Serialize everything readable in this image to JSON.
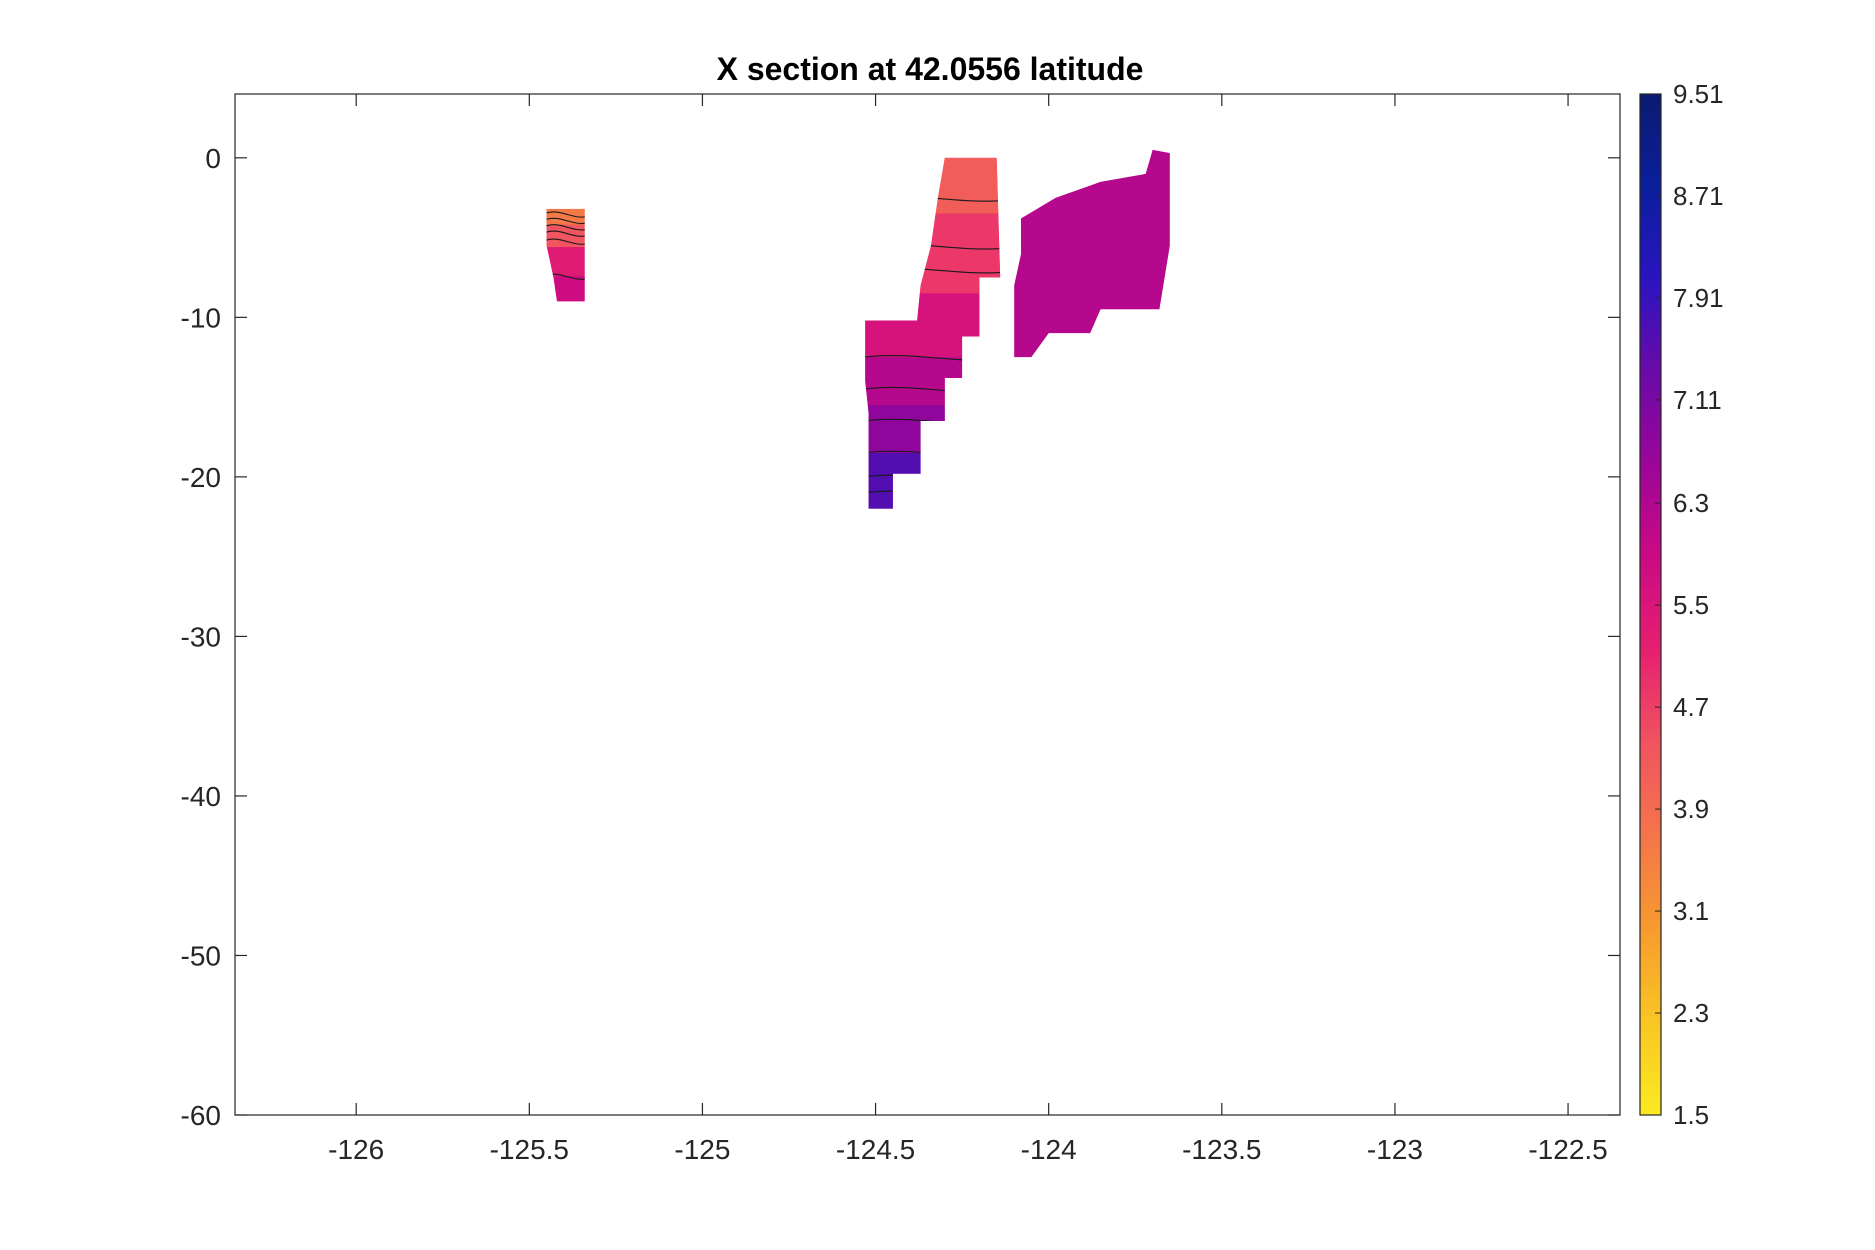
{
  "chart_data": {
    "type": "heatmap",
    "title": "X section at 42.0556 latitude",
    "xlabel": "",
    "ylabel": "",
    "xlim": [
      -126.35,
      -122.35
    ],
    "ylim": [
      -60,
      4
    ],
    "x_ticks": [
      -126,
      -125.5,
      -125,
      -124.5,
      -124,
      -123.5,
      -123,
      -122.5
    ],
    "x_tick_labels": [
      "-126",
      "-125.5",
      "-125",
      "-124.5",
      "-124",
      "-123.5",
      "-123",
      "-122.5"
    ],
    "y_ticks": [
      0,
      -10,
      -20,
      -30,
      -40,
      -50,
      -60
    ],
    "y_tick_labels": [
      "0",
      "-10",
      "-20",
      "-30",
      "-40",
      "-50",
      "-60"
    ],
    "colorbar": {
      "min": 1.5,
      "max": 9.51,
      "ticks": [
        9.51,
        8.71,
        7.91,
        7.11,
        6.3,
        5.5,
        4.7,
        3.9,
        3.1,
        2.3,
        1.5
      ],
      "tick_labels": [
        "9.51",
        "8.71",
        "7.91",
        "7.11",
        "6.3",
        "5.5",
        "4.7",
        "3.9",
        "3.1",
        "2.3",
        "1.5"
      ],
      "colormap_stops": [
        "#fbea22",
        "#f9c623",
        "#f79b2e",
        "#f4754a",
        "#f05460",
        "#e6206f",
        "#cc0a84",
        "#9c0598",
        "#6a0aa8",
        "#2a14c0",
        "#0b1e9c",
        "#0b1a70"
      ]
    },
    "regions": [
      {
        "name": "patch-west",
        "outline": [
          [
            -125.45,
            -3.2
          ],
          [
            -125.34,
            -3.2
          ],
          [
            -125.34,
            -9.0
          ],
          [
            -125.42,
            -9.0
          ],
          [
            -125.43,
            -7.5
          ],
          [
            -125.45,
            -5.5
          ]
        ],
        "value": 5.2,
        "bands": [
          {
            "y_top": -3.2,
            "y_bottom": -4.2,
            "value": 3.6
          },
          {
            "y_top": -4.2,
            "y_bottom": -5.6,
            "value": 4.4
          },
          {
            "y_top": -5.6,
            "y_bottom": -7.4,
            "value": 5.3
          },
          {
            "y_top": -7.4,
            "y_bottom": -9.0,
            "value": 5.8
          }
        ],
        "contours": [
          -3.5,
          -3.9,
          -4.3,
          -4.7,
          -5.2,
          -7.4
        ]
      },
      {
        "name": "patch-central",
        "outline": [
          [
            -124.3,
            0.0
          ],
          [
            -124.15,
            0.0
          ],
          [
            -124.14,
            -7.5
          ],
          [
            -124.2,
            -7.5
          ],
          [
            -124.2,
            -11.2
          ],
          [
            -124.25,
            -11.2
          ],
          [
            -124.25,
            -13.8
          ],
          [
            -124.3,
            -13.8
          ],
          [
            -124.3,
            -16.5
          ],
          [
            -124.37,
            -16.5
          ],
          [
            -124.37,
            -19.8
          ],
          [
            -124.45,
            -19.8
          ],
          [
            -124.45,
            -22.0
          ],
          [
            -124.52,
            -22.0
          ],
          [
            -124.52,
            -16.0
          ],
          [
            -124.53,
            -14.0
          ],
          [
            -124.53,
            -10.2
          ],
          [
            -124.38,
            -10.2
          ],
          [
            -124.37,
            -8.0
          ],
          [
            -124.34,
            -5.5
          ],
          [
            -124.32,
            -2.5
          ]
        ],
        "value": 5.6,
        "bands": [
          {
            "y_top": 0.0,
            "y_bottom": -3.5,
            "value": 4.2
          },
          {
            "y_top": -3.5,
            "y_bottom": -8.5,
            "value": 4.8
          },
          {
            "y_top": -8.5,
            "y_bottom": -12.5,
            "value": 5.6
          },
          {
            "y_top": -12.5,
            "y_bottom": -15.5,
            "value": 6.2
          },
          {
            "y_top": -15.5,
            "y_bottom": -18.5,
            "value": 6.8
          },
          {
            "y_top": -18.5,
            "y_bottom": -22.0,
            "value": 7.6
          }
        ],
        "contours": [
          -2.5,
          -5.5,
          -7.0,
          -12.5,
          -14.5,
          -16.5,
          -18.5,
          -20.0,
          -21.0
        ]
      },
      {
        "name": "patch-east",
        "outline": [
          [
            -124.08,
            -3.8
          ],
          [
            -123.98,
            -2.5
          ],
          [
            -123.85,
            -1.5
          ],
          [
            -123.72,
            -1.0
          ],
          [
            -123.7,
            0.5
          ],
          [
            -123.65,
            0.3
          ],
          [
            -123.65,
            -5.5
          ],
          [
            -123.68,
            -9.5
          ],
          [
            -123.85,
            -9.5
          ],
          [
            -123.88,
            -11.0
          ],
          [
            -124.0,
            -11.0
          ],
          [
            -124.05,
            -12.5
          ],
          [
            -124.1,
            -12.5
          ],
          [
            -124.1,
            -8.0
          ],
          [
            -124.08,
            -6.0
          ]
        ],
        "value": 6.2,
        "bands": [],
        "contours": []
      }
    ]
  }
}
